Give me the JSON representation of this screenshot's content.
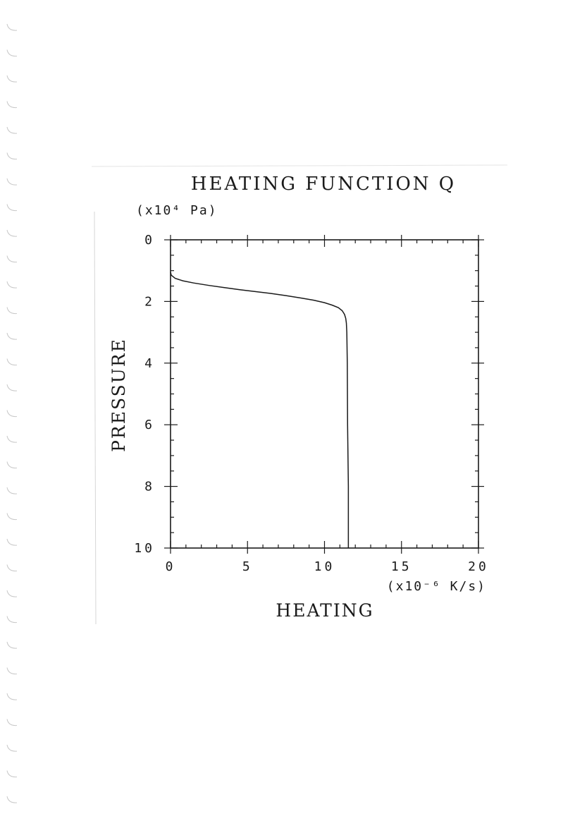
{
  "chart_data": {
    "type": "line",
    "title": "HEATING FUNCTION Q",
    "xlabel": "HEATING",
    "xunit": "(x10⁻⁶ K/s)",
    "ylabel": "PRESSURE",
    "yunit": "(x10⁴ Pa)",
    "xlim": [
      0,
      20
    ],
    "ylim": [
      10,
      0
    ],
    "y_inverted": true,
    "grid": false,
    "x_ticks": [
      "0",
      "5",
      "10",
      "15",
      "20"
    ],
    "y_ticks": [
      "0",
      "2",
      "4",
      "6",
      "8",
      "10"
    ],
    "x_tick_values": [
      0,
      5,
      10,
      15,
      20
    ],
    "y_tick_values": [
      0,
      2,
      4,
      6,
      8,
      10
    ],
    "series": [
      {
        "x": [
          0.0,
          0.05,
          0.3,
          0.8,
          1.5,
          2.5,
          3.5,
          4.5,
          5.5,
          6.5,
          7.5,
          8.5,
          9.3,
          10.0,
          10.5,
          10.9,
          11.15,
          11.3,
          11.38,
          11.42,
          11.45,
          11.48,
          11.5,
          11.55,
          11.55
        ],
        "y": [
          1.05,
          1.15,
          1.25,
          1.33,
          1.4,
          1.48,
          1.55,
          1.62,
          1.68,
          1.74,
          1.81,
          1.89,
          1.96,
          2.04,
          2.12,
          2.2,
          2.3,
          2.42,
          2.55,
          2.7,
          3.0,
          4.0,
          6.0,
          8.0,
          10.0
        ]
      }
    ]
  }
}
